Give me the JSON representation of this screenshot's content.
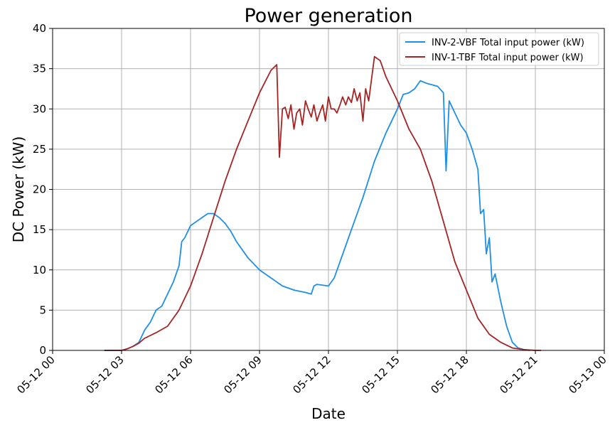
{
  "chart_data": {
    "type": "line",
    "title": "Power generation",
    "xlabel": "Date",
    "ylabel": "DC Power (kW)",
    "xlim": [
      "05-12 00:00",
      "05-13 00:00"
    ],
    "ylim": [
      0,
      40
    ],
    "grid": true,
    "legend_position": "top-right",
    "x_ticks": [
      "05-12 00",
      "05-12 03",
      "05-12 06",
      "05-12 09",
      "05-12 12",
      "05-12 15",
      "05-12 18",
      "05-12 21",
      "05-13 00"
    ],
    "y_ticks": [
      "0",
      "5",
      "10",
      "15",
      "20",
      "25",
      "30",
      "35",
      "40"
    ],
    "series": [
      {
        "name": "INV-2-VBF Total input power (kW)",
        "color": "#1f8fe6",
        "points": [
          [
            "05-12 02:15",
            0
          ],
          [
            "05-12 03:00",
            0
          ],
          [
            "05-12 03:15",
            0.2
          ],
          [
            "05-12 03:30",
            0.5
          ],
          [
            "05-12 03:45",
            1.0
          ],
          [
            "05-12 04:00",
            2.5
          ],
          [
            "05-12 04:15",
            3.5
          ],
          [
            "05-12 04:30",
            5.0
          ],
          [
            "05-12 04:45",
            5.5
          ],
          [
            "05-12 05:00",
            7.0
          ],
          [
            "05-12 05:15",
            8.5
          ],
          [
            "05-12 05:30",
            10.5
          ],
          [
            "05-12 05:37",
            13.5
          ],
          [
            "05-12 05:45",
            14.0
          ],
          [
            "05-12 06:00",
            15.5
          ],
          [
            "05-12 06:15",
            16.0
          ],
          [
            "05-12 06:30",
            16.5
          ],
          [
            "05-12 06:45",
            17.0
          ],
          [
            "05-12 07:00",
            17.0
          ],
          [
            "05-12 07:15",
            16.5
          ],
          [
            "05-12 07:30",
            15.8
          ],
          [
            "05-12 07:45",
            14.8
          ],
          [
            "05-12 08:00",
            13.5
          ],
          [
            "05-12 08:30",
            11.5
          ],
          [
            "05-12 09:00",
            10.0
          ],
          [
            "05-12 09:30",
            9.0
          ],
          [
            "05-12 10:00",
            8.0
          ],
          [
            "05-12 10:30",
            7.5
          ],
          [
            "05-12 11:00",
            7.2
          ],
          [
            "05-12 11:15",
            7.0
          ],
          [
            "05-12 11:22",
            8.0
          ],
          [
            "05-12 11:30",
            8.2
          ],
          [
            "05-12 12:00",
            8.0
          ],
          [
            "05-12 12:15",
            9.0
          ],
          [
            "05-12 12:30",
            11.0
          ],
          [
            "05-12 13:00",
            15.0
          ],
          [
            "05-12 13:30",
            19.0
          ],
          [
            "05-12 14:00",
            23.5
          ],
          [
            "05-12 14:30",
            27.0
          ],
          [
            "05-12 15:00",
            30.0
          ],
          [
            "05-12 15:15",
            31.8
          ],
          [
            "05-12 15:30",
            32.0
          ],
          [
            "05-12 15:45",
            32.5
          ],
          [
            "05-12 16:00",
            33.5
          ],
          [
            "05-12 16:15",
            33.2
          ],
          [
            "05-12 16:30",
            33.0
          ],
          [
            "05-12 16:45",
            32.8
          ],
          [
            "05-12 17:00",
            32.0
          ],
          [
            "05-12 17:07",
            22.3
          ],
          [
            "05-12 17:15",
            31.0
          ],
          [
            "05-12 17:30",
            29.5
          ],
          [
            "05-12 17:45",
            28.0
          ],
          [
            "05-12 18:00",
            27.0
          ],
          [
            "05-12 18:15",
            25.0
          ],
          [
            "05-12 18:30",
            22.5
          ],
          [
            "05-12 18:37",
            17.0
          ],
          [
            "05-12 18:45",
            17.5
          ],
          [
            "05-12 18:52",
            12.0
          ],
          [
            "05-12 19:00",
            14.0
          ],
          [
            "05-12 19:07",
            8.5
          ],
          [
            "05-12 19:15",
            9.5
          ],
          [
            "05-12 19:30",
            6.0
          ],
          [
            "05-12 19:45",
            3.0
          ],
          [
            "05-12 20:00",
            1.0
          ],
          [
            "05-12 20:15",
            0.3
          ],
          [
            "05-12 20:30",
            0.1
          ],
          [
            "05-12 20:45",
            0
          ]
        ]
      },
      {
        "name": "INV-1-TBF Total input power (kW)",
        "color": "#a52424",
        "points": [
          [
            "05-12 02:15",
            0
          ],
          [
            "05-12 03:00",
            0
          ],
          [
            "05-12 03:15",
            0.2
          ],
          [
            "05-12 03:30",
            0.5
          ],
          [
            "05-12 03:45",
            0.9
          ],
          [
            "05-12 04:00",
            1.5
          ],
          [
            "05-12 04:30",
            2.2
          ],
          [
            "05-12 05:00",
            3.0
          ],
          [
            "05-12 05:30",
            5.0
          ],
          [
            "05-12 06:00",
            8.0
          ],
          [
            "05-12 06:30",
            12.0
          ],
          [
            "05-12 07:00",
            16.5
          ],
          [
            "05-12 07:30",
            21.0
          ],
          [
            "05-12 08:00",
            25.0
          ],
          [
            "05-12 08:30",
            28.5
          ],
          [
            "05-12 09:00",
            32.0
          ],
          [
            "05-12 09:30",
            34.8
          ],
          [
            "05-12 09:45",
            35.5
          ],
          [
            "05-12 09:52",
            24.0
          ],
          [
            "05-12 10:00",
            30.0
          ],
          [
            "05-12 10:07",
            30.2
          ],
          [
            "05-12 10:15",
            28.8
          ],
          [
            "05-12 10:22",
            30.5
          ],
          [
            "05-12 10:30",
            27.5
          ],
          [
            "05-12 10:37",
            29.5
          ],
          [
            "05-12 10:45",
            30.0
          ],
          [
            "05-12 10:52",
            28.0
          ],
          [
            "05-12 11:00",
            31.0
          ],
          [
            "05-12 11:07",
            30.0
          ],
          [
            "05-12 11:15",
            29.0
          ],
          [
            "05-12 11:22",
            30.5
          ],
          [
            "05-12 11:30",
            28.5
          ],
          [
            "05-12 11:37",
            29.5
          ],
          [
            "05-12 11:45",
            30.5
          ],
          [
            "05-12 11:52",
            28.5
          ],
          [
            "05-12 12:00",
            31.5
          ],
          [
            "05-12 12:07",
            30.0
          ],
          [
            "05-12 12:15",
            30.0
          ],
          [
            "05-12 12:22",
            29.5
          ],
          [
            "05-12 12:30",
            30.5
          ],
          [
            "05-12 12:37",
            31.5
          ],
          [
            "05-12 12:45",
            30.5
          ],
          [
            "05-12 12:52",
            31.5
          ],
          [
            "05-12 13:00",
            30.8
          ],
          [
            "05-12 13:07",
            32.5
          ],
          [
            "05-12 13:15",
            31.0
          ],
          [
            "05-12 13:22",
            32.0
          ],
          [
            "05-12 13:30",
            28.5
          ],
          [
            "05-12 13:37",
            32.5
          ],
          [
            "05-12 13:45",
            31.0
          ],
          [
            "05-12 14:00",
            36.5
          ],
          [
            "05-12 14:15",
            36.0
          ],
          [
            "05-12 14:30",
            34.0
          ],
          [
            "05-12 15:00",
            31.0
          ],
          [
            "05-12 15:30",
            27.5
          ],
          [
            "05-12 16:00",
            25.0
          ],
          [
            "05-12 16:30",
            21.0
          ],
          [
            "05-12 17:00",
            16.0
          ],
          [
            "05-12 17:30",
            11.0
          ],
          [
            "05-12 18:00",
            7.5
          ],
          [
            "05-12 18:30",
            4.0
          ],
          [
            "05-12 19:00",
            2.0
          ],
          [
            "05-12 19:30",
            1.0
          ],
          [
            "05-12 20:00",
            0.3
          ],
          [
            "05-12 20:30",
            0.1
          ],
          [
            "05-12 21:00",
            0
          ],
          [
            "05-12 21:15",
            0
          ]
        ]
      }
    ]
  }
}
